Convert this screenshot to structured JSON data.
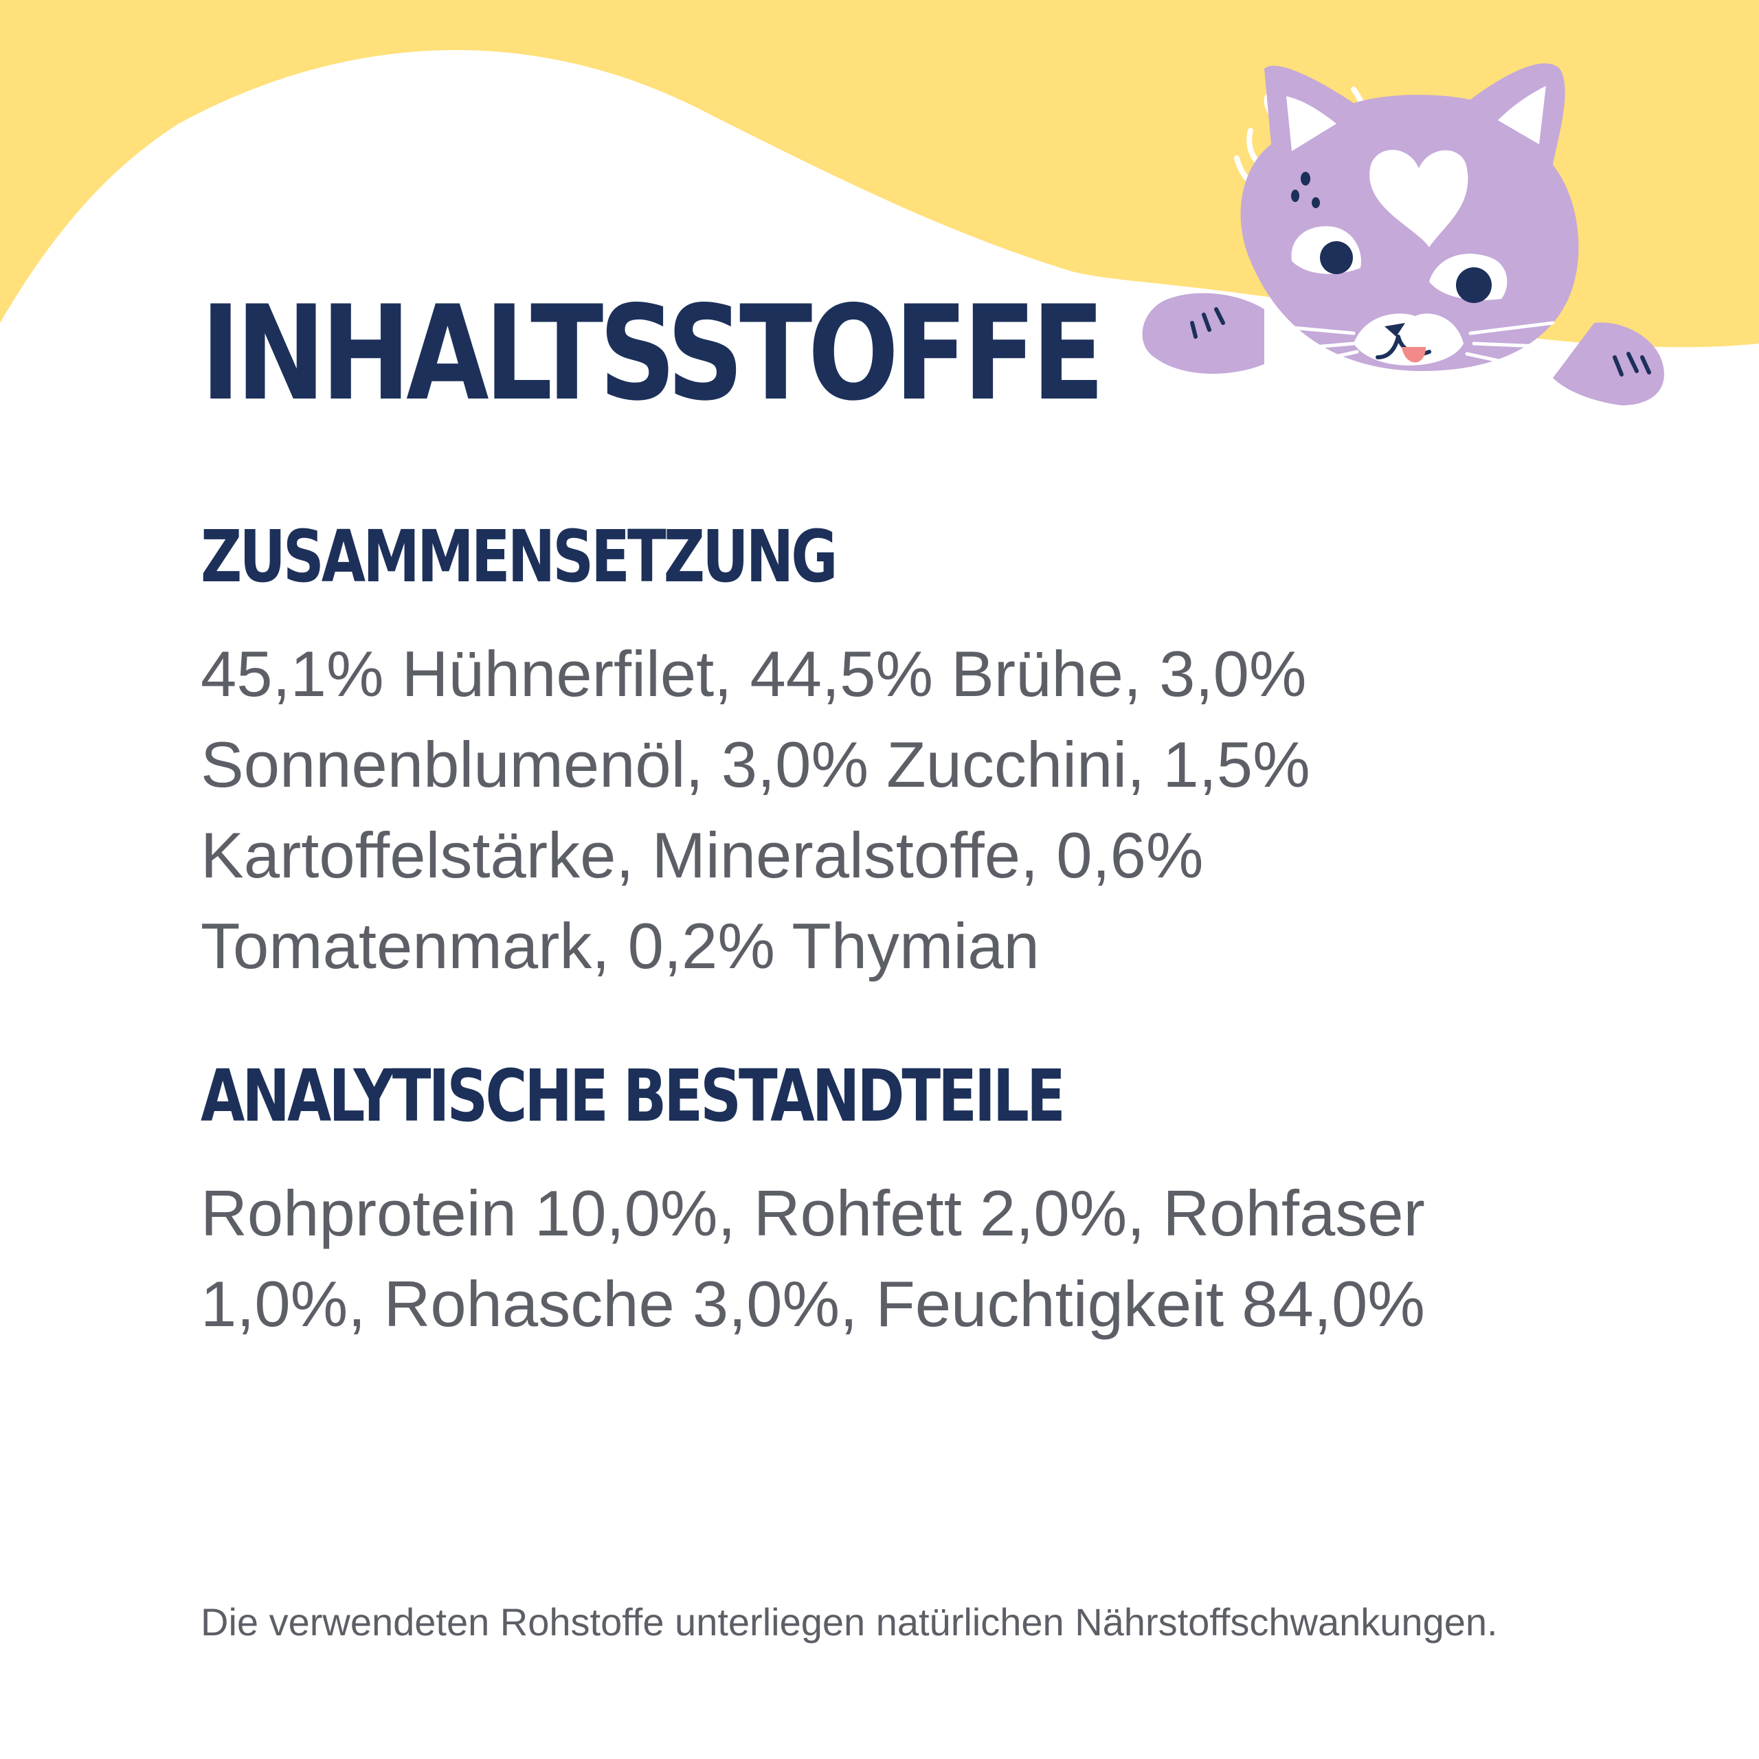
{
  "page": {
    "title": "INHALTSSTOFFE",
    "sections": [
      {
        "heading": "ZUSAMMENSETZUNG",
        "text": "45,1% Hühnerfilet, 44,5% Brühe, 3,0% Sonnenblumenöl, 3,0% Zucchini, 1,5% Kartoffelstärke, Mineralstoffe, 0,6% Tomatenmark, 0,2% Thymian"
      },
      {
        "heading": "ANALYTISCHE BESTANDTEILE",
        "text": "Rohprotein 10,0%, Rohfett 2,0%, Rohfaser 1,0%, Rohasche 3,0%, Feuchtigkeit 84,0%"
      }
    ],
    "footnote": "Die verwendeten Rohstoffe unterliegen natürlichen Nährstoffschwankungen."
  },
  "decor": {
    "illustration": "cat-illustration",
    "colors": {
      "background": "#ffffff",
      "wave": "#ffe07a",
      "cat": "#c4a9d9",
      "heading": "#1c3059",
      "body_text": "#5d5f67"
    }
  }
}
